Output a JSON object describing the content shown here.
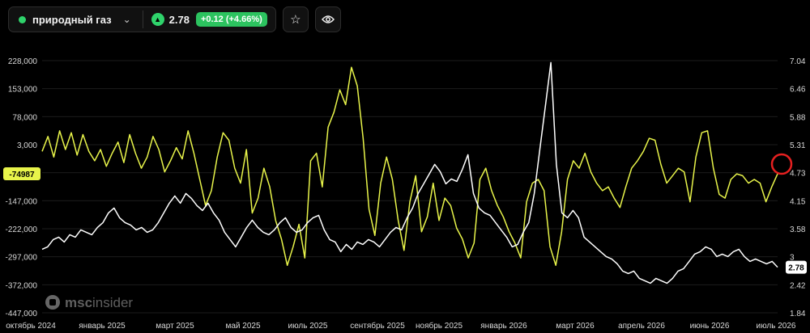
{
  "header": {
    "asset_name": "природный газ",
    "price": "2.78",
    "change": "+0.12 (+4.66%)",
    "dropdown_icon": "chevron-down-icon",
    "up_icon": "triangle-up-icon",
    "watch_icon": "star-icon",
    "view_icon": "eye-icon"
  },
  "watermark": {
    "brand_left": "msc",
    "brand_right": "insider"
  },
  "colors": {
    "net_positions": "#e8f44a",
    "price": "#ffffff",
    "up": "#2fd36b",
    "marker": "#e52020"
  },
  "chart_data": {
    "type": "line",
    "left_axis": {
      "ticks": [
        "228,000",
        "153,000",
        "78,000",
        "3,000",
        "-72,000",
        "-147,000",
        "-222,000",
        "-297,000",
        "-372,000",
        "-447,000"
      ],
      "ylim": [
        -447000,
        228000
      ]
    },
    "right_axis": {
      "ticks": [
        "7.04",
        "6.46",
        "5.88",
        "5.31",
        "4.73",
        "4.15",
        "3.58",
        "3",
        "2.42",
        "1.84"
      ],
      "ylim": [
        1.84,
        7.04
      ]
    },
    "x_ticks": [
      "октябрь 2024",
      "январь 2025",
      "март 2025",
      "май 2025",
      "июль 2025",
      "сентябрь 2025",
      "ноябрь 2025",
      "январь 2026",
      "март 2026",
      "апрель 2026",
      "июнь 2026",
      "июль 2026"
    ],
    "last_left_label": "-74987",
    "last_right_label": "2.78",
    "series": [
      {
        "axis": "left",
        "values": [
          -15000,
          25000,
          -30000,
          40000,
          -10000,
          35000,
          -25000,
          30000,
          -15000,
          -40000,
          -10000,
          -55000,
          -20000,
          10000,
          -45000,
          30000,
          -20000,
          -60000,
          -30000,
          25000,
          -10000,
          -70000,
          -40000,
          -5000,
          -35000,
          40000,
          -20000,
          -90000,
          -160000,
          -120000,
          -30000,
          35000,
          15000,
          -60000,
          -100000,
          -10000,
          -180000,
          -140000,
          -60000,
          -110000,
          -200000,
          -250000,
          -320000,
          -270000,
          -210000,
          -300000,
          -40000,
          -20000,
          -110000,
          50000,
          90000,
          150000,
          110000,
          210000,
          160000,
          20000,
          -170000,
          -240000,
          -100000,
          -30000,
          -90000,
          -200000,
          -280000,
          -150000,
          -80000,
          -230000,
          -190000,
          -100000,
          -200000,
          -140000,
          -160000,
          -220000,
          -250000,
          -300000,
          -260000,
          -90000,
          -60000,
          -120000,
          -160000,
          -190000,
          -230000,
          -260000,
          -300000,
          -150000,
          -100000,
          -90000,
          -120000,
          -270000,
          -320000,
          -230000,
          -90000,
          -40000,
          -60000,
          -20000,
          -70000,
          -100000,
          -120000,
          -110000,
          -140000,
          -165000,
          -110000,
          -60000,
          -40000,
          -15000,
          20000,
          15000,
          -50000,
          -100000,
          -80000,
          -60000,
          -70000,
          -150000,
          -30000,
          35000,
          40000,
          -60000,
          -130000,
          -140000,
          -90000,
          -75000,
          -80000,
          -100000,
          -90000,
          -100000,
          -150000,
          -110000,
          -75000
        ]
      },
      {
        "axis": "right",
        "values": [
          3.15,
          3.2,
          3.35,
          3.4,
          3.3,
          3.45,
          3.4,
          3.55,
          3.5,
          3.45,
          3.6,
          3.7,
          3.9,
          4.0,
          3.8,
          3.7,
          3.65,
          3.55,
          3.6,
          3.5,
          3.55,
          3.7,
          3.9,
          4.1,
          4.25,
          4.1,
          4.3,
          4.2,
          4.05,
          3.95,
          4.1,
          3.9,
          3.75,
          3.5,
          3.35,
          3.2,
          3.4,
          3.6,
          3.75,
          3.6,
          3.5,
          3.45,
          3.55,
          3.7,
          3.8,
          3.6,
          3.5,
          3.55,
          3.7,
          3.8,
          3.85,
          3.55,
          3.35,
          3.3,
          3.1,
          3.25,
          3.15,
          3.3,
          3.25,
          3.35,
          3.3,
          3.2,
          3.35,
          3.5,
          3.6,
          3.55,
          3.8,
          4.0,
          4.3,
          4.5,
          4.7,
          4.9,
          4.75,
          4.5,
          4.6,
          4.55,
          4.8,
          5.1,
          4.3,
          4.0,
          3.9,
          3.85,
          3.7,
          3.55,
          3.4,
          3.2,
          3.25,
          3.5,
          3.7,
          4.3,
          5.2,
          6.1,
          7.0,
          4.9,
          3.9,
          3.8,
          3.95,
          3.8,
          3.4,
          3.3,
          3.2,
          3.1,
          3.0,
          2.95,
          2.85,
          2.7,
          2.65,
          2.7,
          2.55,
          2.5,
          2.45,
          2.55,
          2.5,
          2.45,
          2.55,
          2.7,
          2.75,
          2.9,
          3.05,
          3.1,
          3.2,
          3.15,
          3.0,
          3.05,
          3.0,
          3.1,
          3.15,
          3.0,
          2.9,
          2.95,
          2.9,
          2.85,
          2.9,
          2.78
        ]
      }
    ]
  }
}
